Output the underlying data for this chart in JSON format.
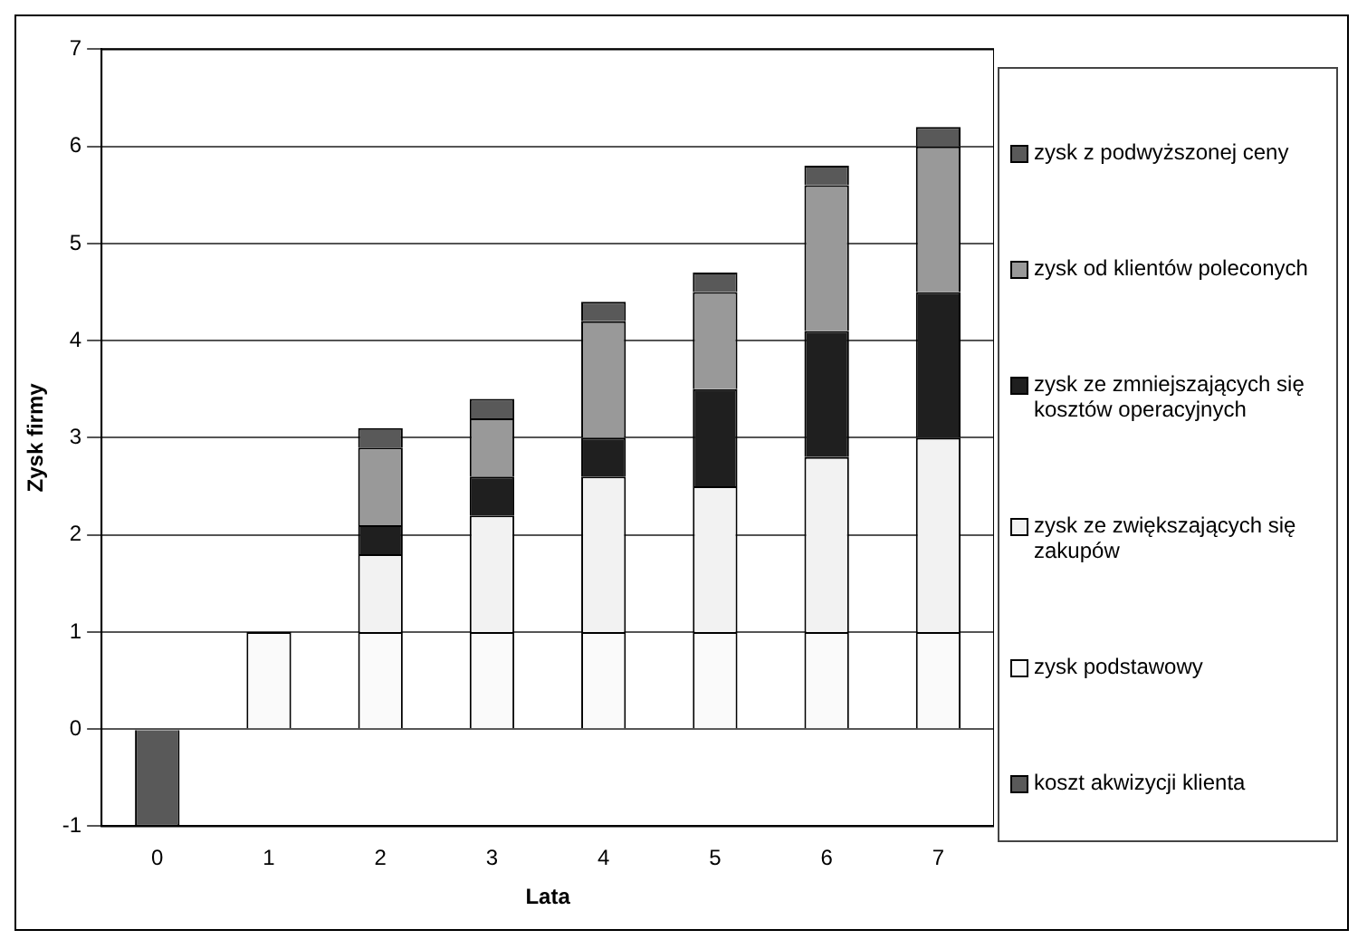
{
  "chart_data": {
    "type": "bar",
    "stacked": true,
    "xlabel": "Lata",
    "ylabel": "Zysk firmy",
    "categories": [
      "0",
      "1",
      "2",
      "3",
      "4",
      "5",
      "6",
      "7"
    ],
    "ylim": [
      -1,
      7
    ],
    "yticks": [
      -1,
      0,
      1,
      2,
      3,
      4,
      5,
      6,
      7
    ],
    "grid": "y",
    "legend": "right",
    "series": [
      {
        "name": "koszt akwizycji klienta",
        "color": "#595959",
        "values": [
          -1,
          null,
          null,
          null,
          null,
          null,
          null,
          null
        ]
      },
      {
        "name": "zysk podstawowy",
        "color": "#fafafa",
        "values": [
          null,
          1,
          1,
          1,
          1,
          1,
          1,
          1
        ]
      },
      {
        "name": "zysk ze zwiększających się zakupów",
        "color": "#f2f2f2",
        "values": [
          null,
          null,
          0.8,
          1.2,
          1.6,
          1.5,
          1.8,
          2.0
        ]
      },
      {
        "name": "zysk ze zmniejszających się kosztów operacyjnych",
        "color": "#1f1f1f",
        "values": [
          null,
          null,
          0.3,
          0.4,
          0.4,
          1.0,
          1.3,
          1.5
        ]
      },
      {
        "name": "zysk od klientów poleconych",
        "color": "#999999",
        "values": [
          null,
          null,
          0.8,
          0.6,
          1.2,
          1.0,
          1.5,
          1.5
        ]
      },
      {
        "name": "zysk z podwyższonej ceny",
        "color": "#595959",
        "values": [
          null,
          null,
          0.2,
          0.2,
          0.2,
          0.2,
          0.2,
          0.2
        ]
      }
    ]
  }
}
